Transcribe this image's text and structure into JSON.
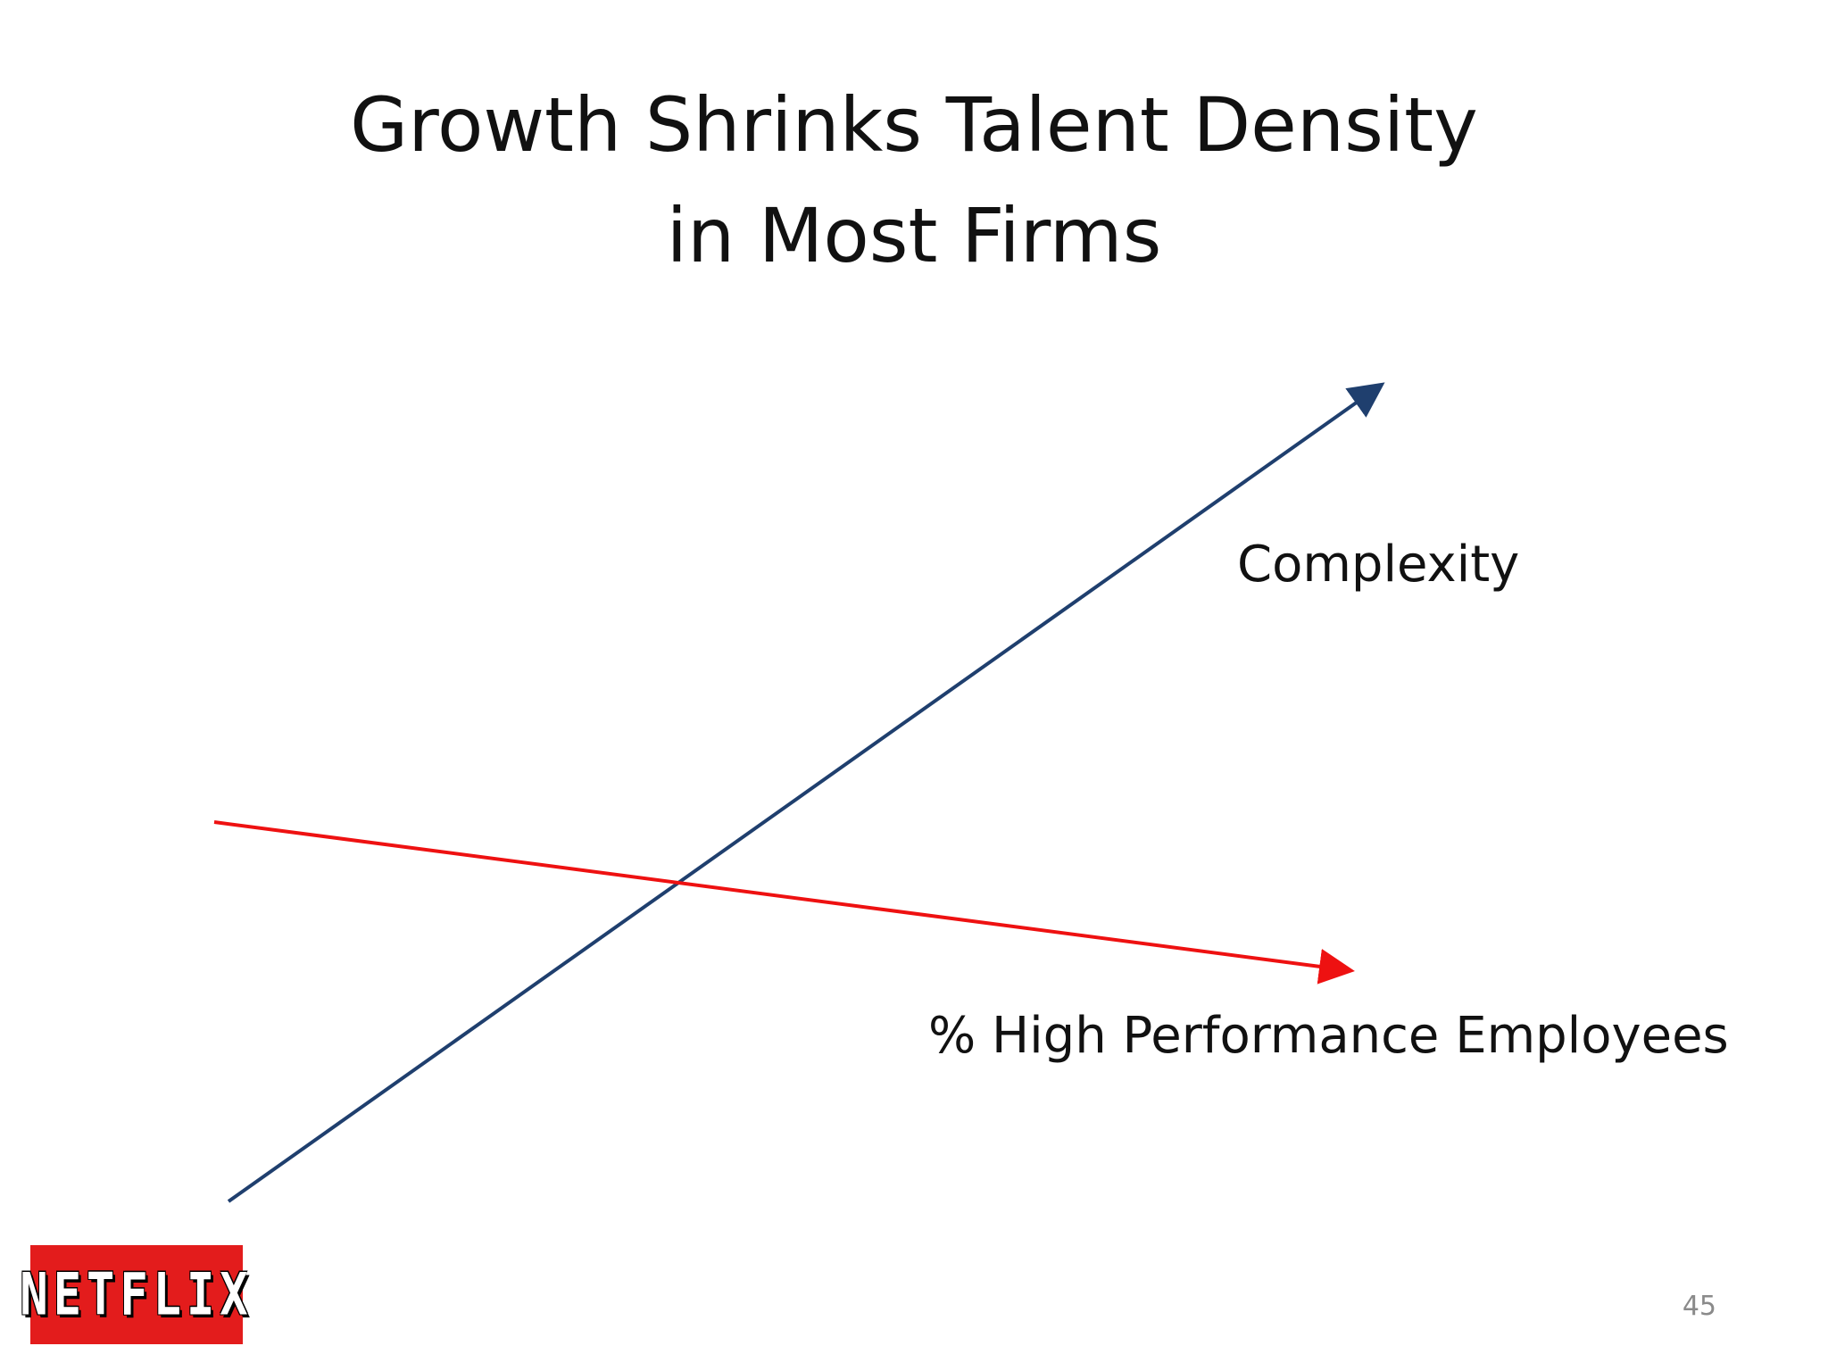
{
  "slide": {
    "title_line1": "Growth Shrinks Talent Density",
    "title_line2": "in Most Firms",
    "page_number": "45",
    "logo_text": "NETFLIX"
  },
  "diagram": {
    "arrows": [
      {
        "label": "Complexity",
        "color": "#1f3f6e",
        "direction": "up"
      },
      {
        "label": "% High Performance Employees",
        "color": "#ee1111",
        "direction": "down"
      }
    ]
  },
  "colors": {
    "complexity_arrow": "#1f3f6e",
    "performance_arrow": "#ee1111",
    "logo_background": "#e31c1c"
  }
}
